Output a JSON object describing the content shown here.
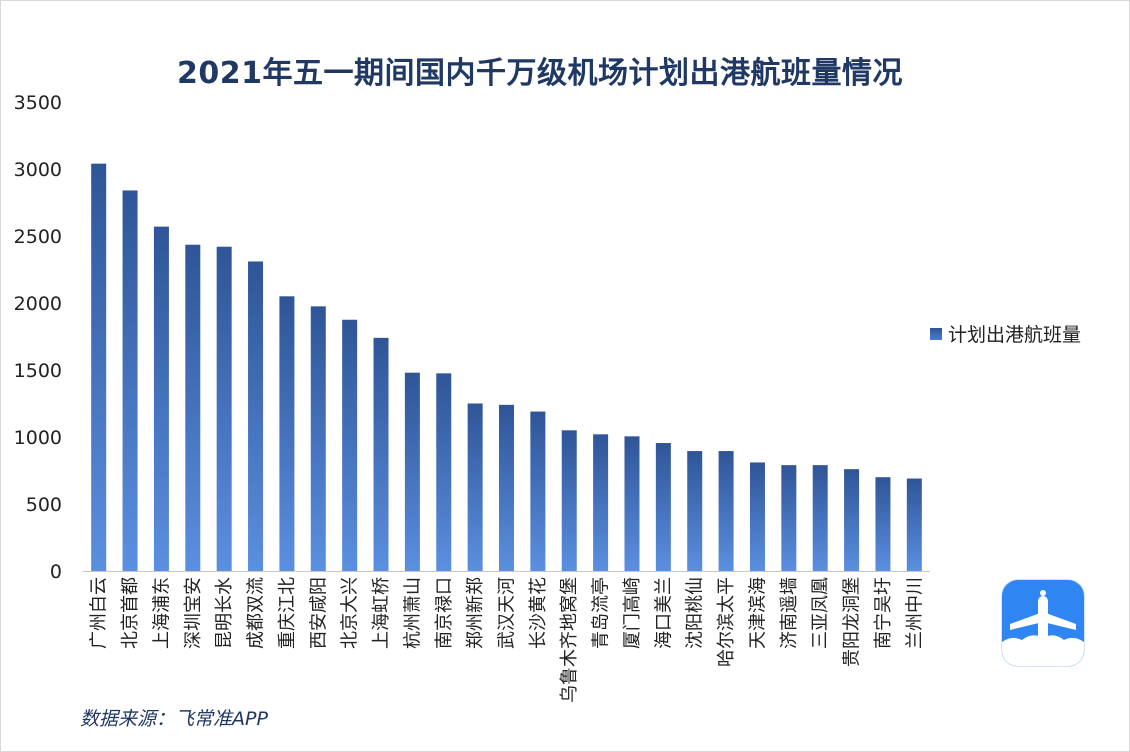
{
  "title": "2021年五一期间国内千万级机场计划出港航班量情况",
  "legend": {
    "label": "计划出港航班量"
  },
  "source": "数据来源：飞常准APP",
  "colors": {
    "bar_top": "#2f5597",
    "bar_bottom": "#5b8fe0",
    "title": "#1f3864",
    "logo": "#2f86f3"
  },
  "icons": {
    "logo": "airplane-app-logo-icon"
  },
  "chart_data": {
    "type": "bar",
    "title": "2021年五一期间国内千万级机场计划出港航班量情况",
    "xlabel": "",
    "ylabel": "",
    "ylim": [
      0,
      3500
    ],
    "yticks": [
      0,
      500,
      1000,
      1500,
      2000,
      2500,
      3000,
      3500
    ],
    "grid": false,
    "legend_position": "right",
    "categories": [
      "广州白云",
      "北京首都",
      "上海浦东",
      "深圳宝安",
      "昆明长水",
      "成都双流",
      "重庆江北",
      "西安咸阳",
      "北京大兴",
      "上海虹桥",
      "杭州萧山",
      "南京禄口",
      "郑州新郑",
      "武汉天河",
      "长沙黄花",
      "乌鲁木齐地窝堡",
      "青岛流亭",
      "厦门高崎",
      "海口美兰",
      "沈阳桃仙",
      "哈尔滨太平",
      "天津滨海",
      "济南遥墙",
      "三亚凤凰",
      "贵阳龙洞堡",
      "南宁吴圩",
      "兰州中川"
    ],
    "series": [
      {
        "name": "计划出港航班量",
        "values": [
          3040,
          2840,
          2570,
          2435,
          2420,
          2310,
          2050,
          1975,
          1875,
          1740,
          1480,
          1475,
          1250,
          1240,
          1190,
          1050,
          1020,
          1005,
          955,
          895,
          895,
          810,
          790,
          790,
          760,
          700,
          690
        ]
      }
    ]
  }
}
